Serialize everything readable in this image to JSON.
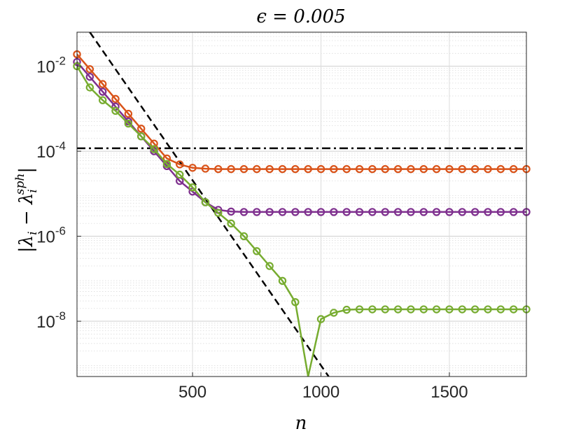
{
  "chart_data": {
    "type": "line",
    "title": "ϵ = 0.005",
    "xlabel": "n",
    "ylabel": "|λ_i − λ_i^sph|",
    "ylabel_main": "|λ",
    "ylabel_sub": "i",
    "ylabel_minus": "− λ",
    "ylabel_sup": "sph",
    "ylabel_sub2": "i",
    "ylabel_end": "|",
    "xlim": [
      50,
      1800
    ],
    "ylim_log10": [
      -9.3,
      -1.2
    ],
    "yscale": "log",
    "grid": true,
    "x_ticks": [
      500,
      1000,
      1500
    ],
    "x_tick_labels": [
      "500",
      "1000",
      "1500"
    ],
    "y_ticks_exp": [
      -8,
      -6,
      -4,
      -2
    ],
    "y_tick_labels": [
      {
        "base": "10",
        "exp": "-8"
      },
      {
        "base": "10",
        "exp": "-6"
      },
      {
        "base": "10",
        "exp": "-4"
      },
      {
        "base": "10",
        "exp": "-2"
      }
    ],
    "x": [
      50,
      100,
      150,
      200,
      250,
      300,
      350,
      400,
      450,
      500,
      550,
      600,
      650,
      700,
      750,
      800,
      850,
      900,
      950,
      1000,
      1050,
      1100,
      1150,
      1200,
      1250,
      1300,
      1350,
      1400,
      1450,
      1500,
      1550,
      1600,
      1650,
      1700,
      1750,
      1800
    ],
    "series": [
      {
        "color": "#d95319",
        "log10_values": [
          -1.72,
          -2.07,
          -2.42,
          -2.77,
          -3.12,
          -3.47,
          -3.82,
          -4.17,
          -4.31,
          -4.39,
          -4.41,
          -4.42,
          -4.42,
          -4.42,
          -4.42,
          -4.42,
          -4.42,
          -4.42,
          -4.42,
          -4.42,
          -4.42,
          -4.42,
          -4.42,
          -4.42,
          -4.42,
          -4.42,
          -4.42,
          -4.42,
          -4.42,
          -4.42,
          -4.42,
          -4.42,
          -4.42,
          -4.42,
          -4.42,
          -4.42
        ]
      },
      {
        "color": "#7e2f8e",
        "log10_values": [
          -1.9,
          -2.25,
          -2.6,
          -2.95,
          -3.3,
          -3.65,
          -4.0,
          -4.35,
          -4.7,
          -4.95,
          -5.2,
          -5.38,
          -5.42,
          -5.43,
          -5.43,
          -5.43,
          -5.43,
          -5.43,
          -5.43,
          -5.43,
          -5.43,
          -5.43,
          -5.43,
          -5.43,
          -5.43,
          -5.43,
          -5.43,
          -5.43,
          -5.43,
          -5.43,
          -5.43,
          -5.43,
          -5.43,
          -5.43,
          -5.43,
          -5.43
        ]
      },
      {
        "color": "#77ac30",
        "log10_values": [
          -2.0,
          -2.5,
          -2.8,
          -3.05,
          -3.35,
          -3.65,
          -3.95,
          -4.3,
          -4.55,
          -4.85,
          -5.2,
          -5.45,
          -5.7,
          -6.0,
          -6.35,
          -6.7,
          -7.05,
          -7.55,
          -9.3,
          -7.95,
          -7.8,
          -7.73,
          -7.72,
          -7.72,
          -7.72,
          -7.72,
          -7.72,
          -7.72,
          -7.72,
          -7.72,
          -7.72,
          -7.72,
          -7.72,
          -7.72,
          -7.72,
          -7.72
        ]
      }
    ],
    "reference_lines": [
      {
        "style": "dashed",
        "color": "#000000",
        "x": [
          100,
          1030
        ],
        "log10_values": [
          -1.2,
          -9.3
        ]
      },
      {
        "style": "dashdot",
        "color": "#000000",
        "x": [
          50,
          1800
        ],
        "log10_values": [
          -3.93,
          -3.93
        ]
      }
    ]
  }
}
